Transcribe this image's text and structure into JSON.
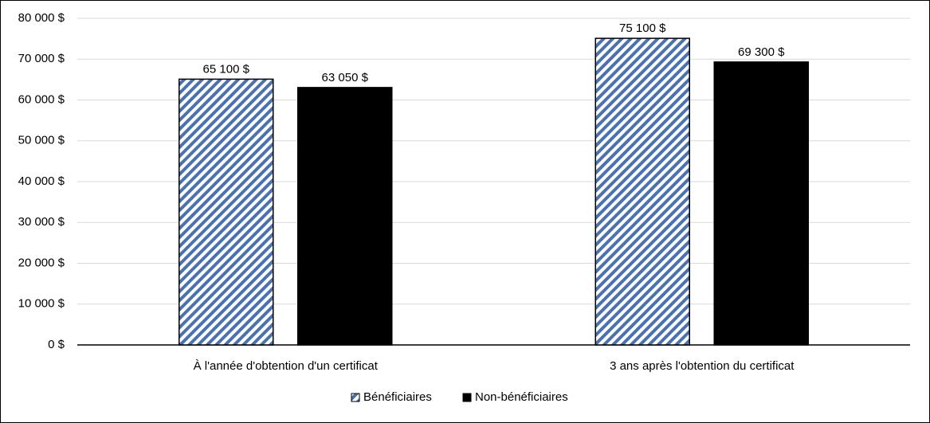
{
  "chart_data": {
    "type": "bar",
    "categories": [
      "À l'année d'obtention d'un certificat",
      "3 ans après l'obtention du certificat"
    ],
    "series": [
      {
        "name": "Bénéficiaires",
        "color": "#4a72b0",
        "pattern": "diagonal-stripes",
        "values": [
          65100,
          75100
        ],
        "value_labels": [
          "65 100 $",
          "75 100 $"
        ]
      },
      {
        "name": "Non-bénéficiaires",
        "color": "#000000",
        "values": [
          63050,
          69300
        ],
        "value_labels": [
          "63 050 $",
          "69 300 $"
        ]
      }
    ],
    "ylim": [
      0,
      80000
    ],
    "yticks": [
      {
        "value": 0,
        "label": "0 $"
      },
      {
        "value": 10000,
        "label": "10 000 $"
      },
      {
        "value": 20000,
        "label": "20 000 $"
      },
      {
        "value": 30000,
        "label": "30 000 $"
      },
      {
        "value": 40000,
        "label": "40 000 $"
      },
      {
        "value": 50000,
        "label": "50 000 $"
      },
      {
        "value": 60000,
        "label": "60 000 $"
      },
      {
        "value": 70000,
        "label": "70 000 $"
      },
      {
        "value": 80000,
        "label": "80 000 $"
      }
    ],
    "grid": true,
    "legend": "bottom"
  }
}
